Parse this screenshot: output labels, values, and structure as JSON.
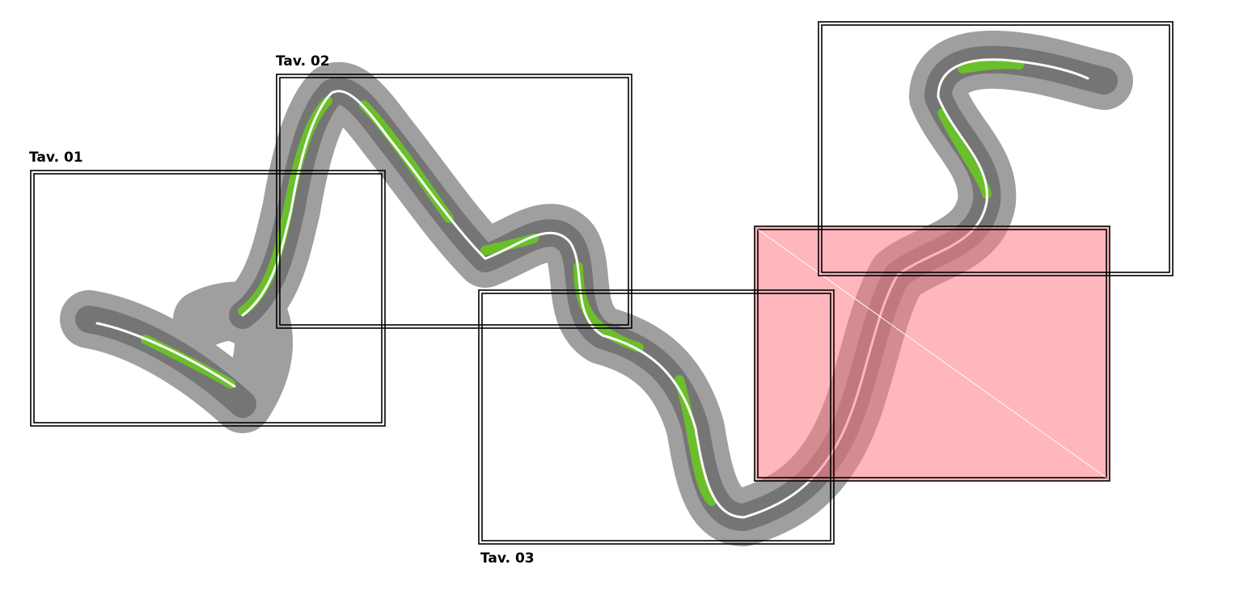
{
  "sheets": [
    {
      "label": "Tav. 01"
    },
    {
      "label": "Tav. 02"
    },
    {
      "label": "Tav. 03"
    }
  ]
}
